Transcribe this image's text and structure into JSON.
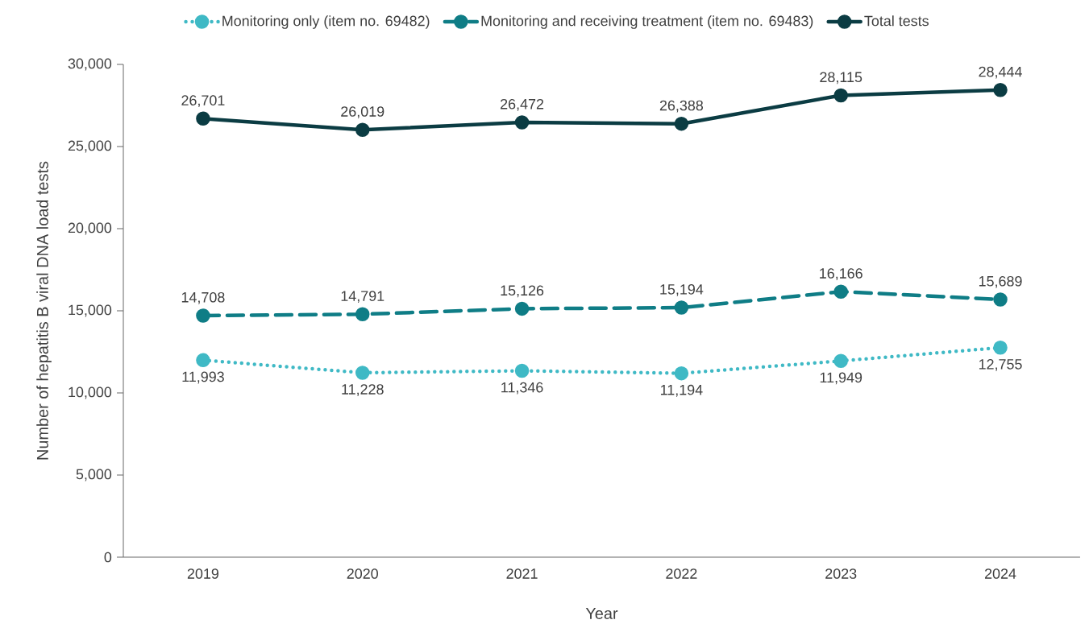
{
  "chart_data": {
    "type": "line",
    "xlabel": "Year",
    "ylabel": "Number of hepatitis B viral DNA load tests",
    "categories": [
      "2019",
      "2020",
      "2021",
      "2022",
      "2023",
      "2024"
    ],
    "series": [
      {
        "name": "Monitoring only (item no. 69482)",
        "color": "#3fb9c5",
        "line_style": "dotted",
        "values": [
          11993,
          11228,
          11346,
          11194,
          11949,
          12755
        ],
        "value_labels": [
          "11,993",
          "11,228",
          "11,346",
          "11,194",
          "11,949",
          "12,755"
        ]
      },
      {
        "name": "Monitoring and receiving treatment (item no. 69483)",
        "color": "#0f7d86",
        "line_style": "dashed",
        "values": [
          14708,
          14791,
          15126,
          15194,
          16166,
          15689
        ],
        "value_labels": [
          "14,708",
          "14,791",
          "15,126",
          "15,194",
          "16,166",
          "15,689"
        ]
      },
      {
        "name": "Total tests",
        "color": "#0b3c43",
        "line_style": "solid",
        "values": [
          26701,
          26019,
          26472,
          26388,
          28115,
          28444
        ],
        "value_labels": [
          "26,701",
          "26,019",
          "26,472",
          "26,388",
          "28,115",
          "28,444"
        ]
      }
    ],
    "ylim": [
      0,
      30000
    ],
    "yticks": [
      0,
      {
        "value": 5000,
        "label": "5,000"
      },
      {
        "value": 10000,
        "label": "10,000"
      },
      {
        "value": 15000,
        "label": "15,000"
      },
      {
        "value": 20000,
        "label": "20,000"
      },
      {
        "value": 25000,
        "label": "25,000"
      },
      {
        "value": 30000,
        "label": "30,000"
      }
    ],
    "legend": "top",
    "marker": "circle",
    "grid": false
  }
}
